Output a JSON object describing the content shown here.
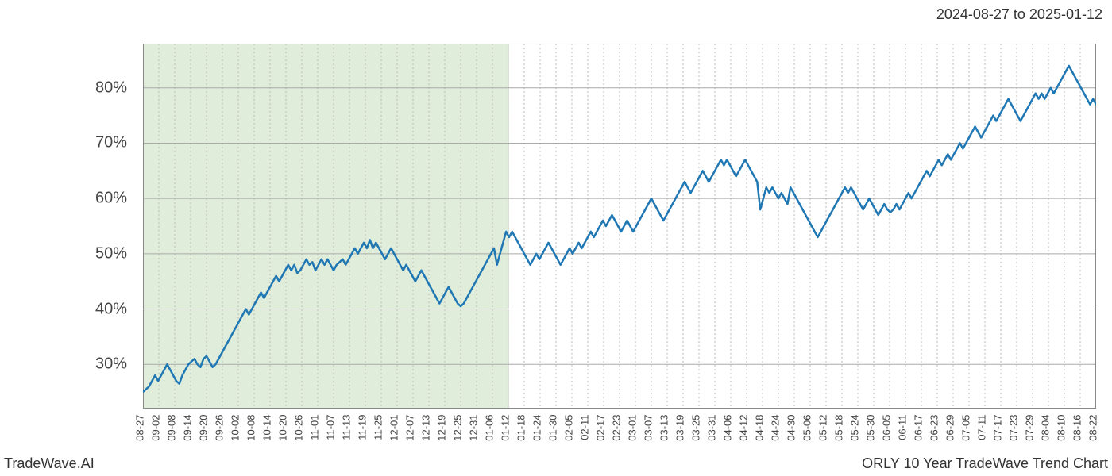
{
  "header": {
    "date_range": "2024-08-27 to 2025-01-12"
  },
  "footer": {
    "left": "TradeWave.AI",
    "right": "ORLY 10 Year TradeWave Trend Chart"
  },
  "chart": {
    "type": "line",
    "background_color": "#ffffff",
    "line_color": "#1f77b4",
    "line_width": 2.5,
    "highlight_region": {
      "start_x": "08-27",
      "end_x": "01-12",
      "fill_color": "#d9ead3",
      "fill_opacity": 0.85,
      "border_color": "#b0c8a8"
    },
    "grid": {
      "horizontal_color": "#aaaaaa",
      "horizontal_width": 1,
      "vertical_color": "#bbbbbb",
      "vertical_style": "dashed",
      "vertical_width": 1
    },
    "border_color": "#888888",
    "y_axis": {
      "min": 22,
      "max": 88,
      "ticks": [
        30,
        40,
        50,
        60,
        70,
        80
      ],
      "tick_labels": [
        "30%",
        "40%",
        "50%",
        "60%",
        "70%",
        "80%"
      ],
      "label_fontsize": 20,
      "label_color": "#444444"
    },
    "x_axis": {
      "labels": [
        "08-27",
        "09-02",
        "09-08",
        "09-14",
        "09-20",
        "09-26",
        "10-02",
        "10-08",
        "10-14",
        "10-20",
        "10-26",
        "11-01",
        "11-07",
        "11-13",
        "11-19",
        "11-25",
        "12-01",
        "12-07",
        "12-13",
        "12-19",
        "12-25",
        "12-31",
        "01-06",
        "01-12",
        "01-18",
        "01-24",
        "01-30",
        "02-05",
        "02-11",
        "02-17",
        "02-23",
        "03-01",
        "03-07",
        "03-13",
        "03-19",
        "03-25",
        "03-31",
        "04-06",
        "04-12",
        "04-18",
        "04-24",
        "04-30",
        "05-06",
        "05-12",
        "05-18",
        "05-24",
        "05-30",
        "06-05",
        "06-11",
        "06-17",
        "06-23",
        "06-29",
        "07-05",
        "07-11",
        "07-17",
        "07-23",
        "07-29",
        "08-04",
        "08-10",
        "08-16",
        "08-22"
      ],
      "label_fontsize": 13,
      "label_color": "#444444",
      "label_rotation": -90
    },
    "series": {
      "name": "ORLY",
      "values": [
        25,
        25.5,
        26,
        27,
        28,
        27,
        28,
        29,
        30,
        29,
        28,
        27,
        26.5,
        28,
        29,
        30,
        30.5,
        31,
        30,
        29.5,
        31,
        31.5,
        30.5,
        29.5,
        30,
        31,
        32,
        33,
        34,
        35,
        36,
        37,
        38,
        39,
        40,
        39,
        40,
        41,
        42,
        43,
        42,
        43,
        44,
        45,
        46,
        45,
        46,
        47,
        48,
        47,
        48,
        46.5,
        47,
        48,
        49,
        48,
        48.5,
        47,
        48,
        49,
        48,
        49,
        48,
        47,
        48,
        48.5,
        49,
        48,
        49,
        50,
        51,
        50,
        51,
        52,
        51,
        52.5,
        51,
        52,
        51,
        50,
        49,
        50,
        51,
        50,
        49,
        48,
        47,
        48,
        47,
        46,
        45,
        46,
        47,
        46,
        45,
        44,
        43,
        42,
        41,
        42,
        43,
        44,
        43,
        42,
        41,
        40.5,
        41,
        42,
        43,
        44,
        45,
        46,
        47,
        48,
        49,
        50,
        51,
        48,
        50,
        52,
        54,
        53,
        54,
        53,
        52,
        51,
        50,
        49,
        48,
        49,
        50,
        49,
        50,
        51,
        52,
        51,
        50,
        49,
        48,
        49,
        50,
        51,
        50,
        51,
        52,
        51,
        52,
        53,
        54,
        53,
        54,
        55,
        56,
        55,
        56,
        57,
        56,
        55,
        54,
        55,
        56,
        55,
        54,
        55,
        56,
        57,
        58,
        59,
        60,
        59,
        58,
        57,
        56,
        57,
        58,
        59,
        60,
        61,
        62,
        63,
        62,
        61,
        62,
        63,
        64,
        65,
        64,
        63,
        64,
        65,
        66,
        67,
        66,
        67,
        66,
        65,
        64,
        65,
        66,
        67,
        66,
        65,
        64,
        63,
        58,
        60,
        62,
        61,
        62,
        61,
        60,
        61,
        60,
        59,
        62,
        61,
        60,
        59,
        58,
        57,
        56,
        55,
        54,
        53,
        54,
        55,
        56,
        57,
        58,
        59,
        60,
        61,
        62,
        61,
        62,
        61,
        60,
        59,
        58,
        59,
        60,
        59,
        58,
        57,
        58,
        59,
        58,
        57.5,
        58,
        59,
        58,
        59,
        60,
        61,
        60,
        61,
        62,
        63,
        64,
        65,
        64,
        65,
        66,
        67,
        66,
        67,
        68,
        67,
        68,
        69,
        70,
        69,
        70,
        71,
        72,
        73,
        72,
        71,
        72,
        73,
        74,
        75,
        74,
        75,
        76,
        77,
        78,
        77,
        76,
        75,
        74,
        75,
        76,
        77,
        78,
        79,
        78,
        79,
        78,
        79,
        80,
        79,
        80,
        81,
        82,
        83,
        84,
        83,
        82,
        81,
        80,
        79,
        78,
        77,
        78,
        77
      ]
    }
  }
}
